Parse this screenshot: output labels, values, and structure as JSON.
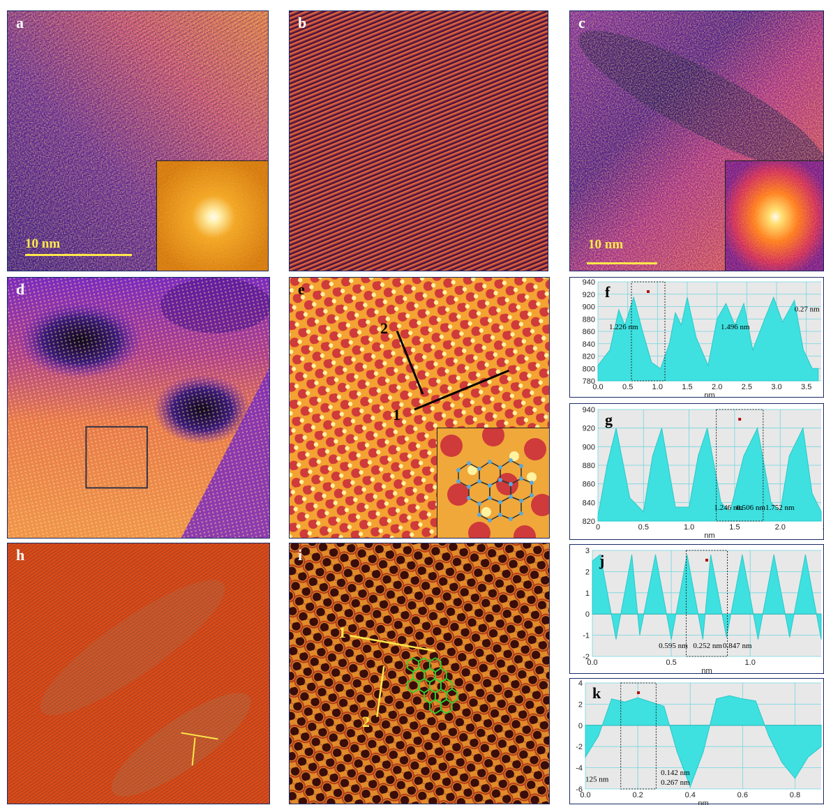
{
  "panels": {
    "a": {
      "label": "a",
      "scale": "10 nm"
    },
    "b": {
      "label": "b"
    },
    "c": {
      "label": "c",
      "scale": "10 nm"
    },
    "d": {
      "label": "d"
    },
    "e": {
      "label": "e",
      "line1": "1",
      "line2": "2"
    },
    "h": {
      "label": "h"
    },
    "i": {
      "label": "i",
      "line1": "1",
      "line2": "2"
    }
  },
  "chart_data": [
    {
      "label": "f",
      "type": "area",
      "x": [
        0.0,
        0.2,
        0.35,
        0.45,
        0.6,
        0.75,
        0.9,
        1.05,
        1.2,
        1.3,
        1.4,
        1.5,
        1.65,
        1.85,
        2.0,
        2.15,
        2.3,
        2.45,
        2.6,
        2.8,
        2.95,
        3.1,
        3.3,
        3.45,
        3.6,
        3.7
      ],
      "y": [
        805,
        830,
        895,
        870,
        915,
        860,
        810,
        800,
        840,
        890,
        870,
        915,
        850,
        805,
        880,
        905,
        870,
        905,
        830,
        880,
        915,
        875,
        910,
        830,
        800,
        800
      ],
      "xlim": [
        0,
        3.75
      ],
      "ylim": [
        780,
        940
      ],
      "xticks": [
        "0.0",
        "0.5",
        "1.0",
        "1.5",
        "2.0",
        "2.5",
        "3.0",
        "3.5"
      ],
      "yticks": [
        "780",
        "800",
        "820",
        "840",
        "860",
        "880",
        "900",
        "920",
        "940"
      ],
      "xlabel": "nm",
      "annotations": [
        "0.27 nm",
        "1.226 nm",
        "1.496 nm"
      ]
    },
    {
      "label": "g",
      "type": "area",
      "x": [
        0.0,
        0.1,
        0.2,
        0.35,
        0.5,
        0.6,
        0.7,
        0.85,
        1.0,
        1.1,
        1.2,
        1.35,
        1.45,
        1.6,
        1.75,
        1.9,
        2.0,
        2.1,
        2.25,
        2.35,
        2.45
      ],
      "y": [
        825,
        880,
        920,
        845,
        830,
        890,
        920,
        835,
        835,
        890,
        920,
        840,
        830,
        890,
        920,
        840,
        830,
        890,
        920,
        850,
        830
      ],
      "xlim": [
        0,
        2.45
      ],
      "ylim": [
        820,
        940
      ],
      "xticks": [
        "0",
        "0.5",
        "1.0",
        "1.5",
        "2.0",
        "2."
      ],
      "yticks": [
        "820",
        "840",
        "860",
        "880",
        "900",
        "920",
        "940"
      ],
      "xlabel": "nm",
      "annotations": [
        "1.246 nm",
        "0.506 nm",
        "1.752 nm"
      ]
    },
    {
      "label": "j",
      "type": "area",
      "x": [
        0.0,
        0.05,
        0.15,
        0.25,
        0.3,
        0.4,
        0.5,
        0.6,
        0.7,
        0.75,
        0.85,
        0.95,
        1.05,
        1.15,
        1.25,
        1.35,
        1.45
      ],
      "y": [
        2.5,
        2.8,
        -1.2,
        2.8,
        -1.0,
        2.8,
        -1.2,
        2.8,
        -1.2,
        2.8,
        -1.1,
        2.8,
        -1.2,
        2.8,
        -1.1,
        2.8,
        -1.2
      ],
      "xlim": [
        0,
        1.45
      ],
      "ylim": [
        -2,
        3
      ],
      "xticks": [
        "0.0",
        "0.5",
        "1.0"
      ],
      "yticks": [
        "-2",
        "-1",
        "0",
        "1",
        "2",
        "3"
      ],
      "xlabel": "nm",
      "annotations": [
        "0.595 nm",
        "0.252 nm",
        "0.847 nm"
      ]
    },
    {
      "label": "k",
      "type": "area",
      "x": [
        0.0,
        0.05,
        0.1,
        0.15,
        0.2,
        0.25,
        0.3,
        0.35,
        0.4,
        0.45,
        0.5,
        0.55,
        0.6,
        0.65,
        0.7,
        0.75,
        0.8,
        0.85,
        0.9
      ],
      "y": [
        -3,
        -1,
        2.5,
        2.2,
        2.6,
        2.2,
        1.8,
        -2.5,
        -5.8,
        -2.5,
        2.5,
        2.8,
        2.5,
        2.3,
        -1,
        -3.5,
        -5,
        -3,
        -2
      ],
      "xlim": [
        0,
        0.9
      ],
      "ylim": [
        -6,
        4
      ],
      "xticks": [
        "0.0",
        "0.2",
        "0.4",
        "0.6",
        "0.8"
      ],
      "yticks": [
        "-6",
        "-4",
        "-2",
        "0",
        "2",
        "4"
      ],
      "xlabel": "nm",
      "annotations": [
        "0.142 nm",
        "125 nm",
        "0.267 nm"
      ]
    }
  ]
}
